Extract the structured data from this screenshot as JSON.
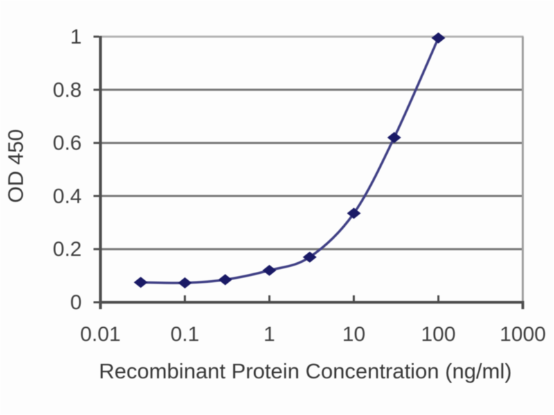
{
  "figure": {
    "background": "#fdfdfd",
    "text_color": "#3f3f3f",
    "axis_color": "#4d4d4d",
    "grid_color": "#757575",
    "top_grid_color": "#b3b3b3",
    "right_border_color": "#a0a0a0",
    "line_color": "#3f3f85",
    "marker_color": "#1a1a66"
  },
  "chart_data": {
    "type": "line",
    "title": "",
    "xlabel": "Recombinant Protein Concentration (ng/ml)",
    "ylabel": "OD 450",
    "x_scale": "log",
    "xlim": [
      0.01,
      1000
    ],
    "ylim": [
      0,
      1
    ],
    "x_ticks": [
      0.01,
      0.1,
      1,
      10,
      100,
      1000
    ],
    "x_tick_labels": [
      "0.01",
      "0.1",
      "1",
      "10",
      "100",
      "1000"
    ],
    "y_ticks": [
      0,
      0.2,
      0.4,
      0.6,
      0.8,
      1
    ],
    "y_tick_labels": [
      "0",
      "0.2",
      "0.4",
      "0.6",
      "0.8",
      "1"
    ],
    "grid": "horizontal",
    "legend": "none",
    "marker": "diamond",
    "series": [
      {
        "name": "OD 450",
        "x": [
          0.03,
          0.1,
          0.3,
          1,
          3,
          10,
          30,
          100
        ],
        "y": [
          0.075,
          0.073,
          0.085,
          0.12,
          0.17,
          0.335,
          0.62,
          0.995
        ]
      }
    ]
  }
}
